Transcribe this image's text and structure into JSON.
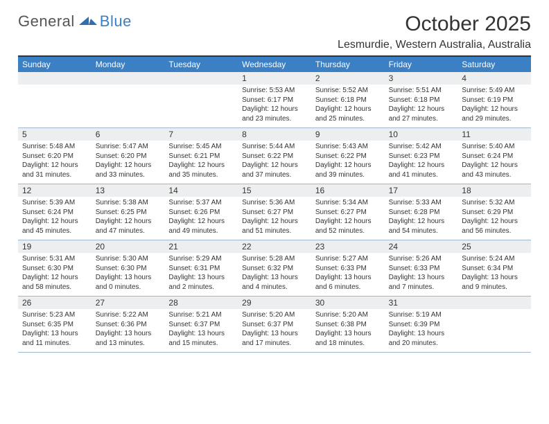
{
  "logo": {
    "general": "General",
    "blue": "Blue"
  },
  "title": "October 2025",
  "subtitle": "Lesmurdie, Western Australia, Australia",
  "colors": {
    "header_bar": "#3b7fc4",
    "date_row_bg": "#eceeef",
    "rule": "#9fb7cf",
    "top_rule": "#333333",
    "text": "#333333",
    "white": "#ffffff"
  },
  "typography": {
    "title_fontsize": 30,
    "subtitle_fontsize": 16,
    "dayname_fontsize": 12,
    "datenum_fontsize": 12,
    "info_fontsize": 10
  },
  "day_names": [
    "Sunday",
    "Monday",
    "Tuesday",
    "Wednesday",
    "Thursday",
    "Friday",
    "Saturday"
  ],
  "weeks": [
    [
      {
        "date": "",
        "sunrise": "",
        "sunset": "",
        "daylight": ""
      },
      {
        "date": "",
        "sunrise": "",
        "sunset": "",
        "daylight": ""
      },
      {
        "date": "",
        "sunrise": "",
        "sunset": "",
        "daylight": ""
      },
      {
        "date": "1",
        "sunrise": "Sunrise: 5:53 AM",
        "sunset": "Sunset: 6:17 PM",
        "daylight": "Daylight: 12 hours and 23 minutes."
      },
      {
        "date": "2",
        "sunrise": "Sunrise: 5:52 AM",
        "sunset": "Sunset: 6:18 PM",
        "daylight": "Daylight: 12 hours and 25 minutes."
      },
      {
        "date": "3",
        "sunrise": "Sunrise: 5:51 AM",
        "sunset": "Sunset: 6:18 PM",
        "daylight": "Daylight: 12 hours and 27 minutes."
      },
      {
        "date": "4",
        "sunrise": "Sunrise: 5:49 AM",
        "sunset": "Sunset: 6:19 PM",
        "daylight": "Daylight: 12 hours and 29 minutes."
      }
    ],
    [
      {
        "date": "5",
        "sunrise": "Sunrise: 5:48 AM",
        "sunset": "Sunset: 6:20 PM",
        "daylight": "Daylight: 12 hours and 31 minutes."
      },
      {
        "date": "6",
        "sunrise": "Sunrise: 5:47 AM",
        "sunset": "Sunset: 6:20 PM",
        "daylight": "Daylight: 12 hours and 33 minutes."
      },
      {
        "date": "7",
        "sunrise": "Sunrise: 5:45 AM",
        "sunset": "Sunset: 6:21 PM",
        "daylight": "Daylight: 12 hours and 35 minutes."
      },
      {
        "date": "8",
        "sunrise": "Sunrise: 5:44 AM",
        "sunset": "Sunset: 6:22 PM",
        "daylight": "Daylight: 12 hours and 37 minutes."
      },
      {
        "date": "9",
        "sunrise": "Sunrise: 5:43 AM",
        "sunset": "Sunset: 6:22 PM",
        "daylight": "Daylight: 12 hours and 39 minutes."
      },
      {
        "date": "10",
        "sunrise": "Sunrise: 5:42 AM",
        "sunset": "Sunset: 6:23 PM",
        "daylight": "Daylight: 12 hours and 41 minutes."
      },
      {
        "date": "11",
        "sunrise": "Sunrise: 5:40 AM",
        "sunset": "Sunset: 6:24 PM",
        "daylight": "Daylight: 12 hours and 43 minutes."
      }
    ],
    [
      {
        "date": "12",
        "sunrise": "Sunrise: 5:39 AM",
        "sunset": "Sunset: 6:24 PM",
        "daylight": "Daylight: 12 hours and 45 minutes."
      },
      {
        "date": "13",
        "sunrise": "Sunrise: 5:38 AM",
        "sunset": "Sunset: 6:25 PM",
        "daylight": "Daylight: 12 hours and 47 minutes."
      },
      {
        "date": "14",
        "sunrise": "Sunrise: 5:37 AM",
        "sunset": "Sunset: 6:26 PM",
        "daylight": "Daylight: 12 hours and 49 minutes."
      },
      {
        "date": "15",
        "sunrise": "Sunrise: 5:36 AM",
        "sunset": "Sunset: 6:27 PM",
        "daylight": "Daylight: 12 hours and 51 minutes."
      },
      {
        "date": "16",
        "sunrise": "Sunrise: 5:34 AM",
        "sunset": "Sunset: 6:27 PM",
        "daylight": "Daylight: 12 hours and 52 minutes."
      },
      {
        "date": "17",
        "sunrise": "Sunrise: 5:33 AM",
        "sunset": "Sunset: 6:28 PM",
        "daylight": "Daylight: 12 hours and 54 minutes."
      },
      {
        "date": "18",
        "sunrise": "Sunrise: 5:32 AM",
        "sunset": "Sunset: 6:29 PM",
        "daylight": "Daylight: 12 hours and 56 minutes."
      }
    ],
    [
      {
        "date": "19",
        "sunrise": "Sunrise: 5:31 AM",
        "sunset": "Sunset: 6:30 PM",
        "daylight": "Daylight: 12 hours and 58 minutes."
      },
      {
        "date": "20",
        "sunrise": "Sunrise: 5:30 AM",
        "sunset": "Sunset: 6:30 PM",
        "daylight": "Daylight: 13 hours and 0 minutes."
      },
      {
        "date": "21",
        "sunrise": "Sunrise: 5:29 AM",
        "sunset": "Sunset: 6:31 PM",
        "daylight": "Daylight: 13 hours and 2 minutes."
      },
      {
        "date": "22",
        "sunrise": "Sunrise: 5:28 AM",
        "sunset": "Sunset: 6:32 PM",
        "daylight": "Daylight: 13 hours and 4 minutes."
      },
      {
        "date": "23",
        "sunrise": "Sunrise: 5:27 AM",
        "sunset": "Sunset: 6:33 PM",
        "daylight": "Daylight: 13 hours and 6 minutes."
      },
      {
        "date": "24",
        "sunrise": "Sunrise: 5:26 AM",
        "sunset": "Sunset: 6:33 PM",
        "daylight": "Daylight: 13 hours and 7 minutes."
      },
      {
        "date": "25",
        "sunrise": "Sunrise: 5:24 AM",
        "sunset": "Sunset: 6:34 PM",
        "daylight": "Daylight: 13 hours and 9 minutes."
      }
    ],
    [
      {
        "date": "26",
        "sunrise": "Sunrise: 5:23 AM",
        "sunset": "Sunset: 6:35 PM",
        "daylight": "Daylight: 13 hours and 11 minutes."
      },
      {
        "date": "27",
        "sunrise": "Sunrise: 5:22 AM",
        "sunset": "Sunset: 6:36 PM",
        "daylight": "Daylight: 13 hours and 13 minutes."
      },
      {
        "date": "28",
        "sunrise": "Sunrise: 5:21 AM",
        "sunset": "Sunset: 6:37 PM",
        "daylight": "Daylight: 13 hours and 15 minutes."
      },
      {
        "date": "29",
        "sunrise": "Sunrise: 5:20 AM",
        "sunset": "Sunset: 6:37 PM",
        "daylight": "Daylight: 13 hours and 17 minutes."
      },
      {
        "date": "30",
        "sunrise": "Sunrise: 5:20 AM",
        "sunset": "Sunset: 6:38 PM",
        "daylight": "Daylight: 13 hours and 18 minutes."
      },
      {
        "date": "31",
        "sunrise": "Sunrise: 5:19 AM",
        "sunset": "Sunset: 6:39 PM",
        "daylight": "Daylight: 13 hours and 20 minutes."
      },
      {
        "date": "",
        "sunrise": "",
        "sunset": "",
        "daylight": ""
      }
    ]
  ]
}
